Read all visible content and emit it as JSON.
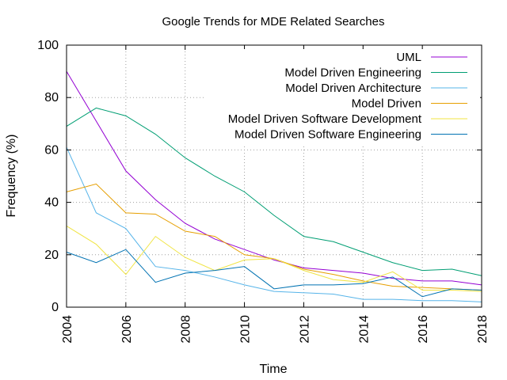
{
  "chart_data": {
    "type": "line",
    "title": "Google Trends for MDE Related Searches",
    "xlabel": "Time",
    "ylabel": "Frequency (%)",
    "xlim": [
      2004,
      2018
    ],
    "ylim": [
      0,
      100
    ],
    "x_ticks": [
      2004,
      2006,
      2008,
      2010,
      2012,
      2014,
      2016,
      2018
    ],
    "y_ticks": [
      0,
      20,
      40,
      60,
      80,
      100
    ],
    "grid": true,
    "legend_position": "top-right",
    "x": [
      2004,
      2005,
      2006,
      2007,
      2008,
      2009,
      2010,
      2011,
      2012,
      2013,
      2014,
      2015,
      2016,
      2017,
      2018
    ],
    "series": [
      {
        "name": "UML",
        "color": "#9400d3",
        "values": [
          90,
          71,
          52,
          41,
          32,
          26,
          22,
          18,
          15,
          14,
          13,
          11,
          10,
          10,
          8.5
        ]
      },
      {
        "name": "Model Driven Engineering",
        "color": "#009e73",
        "values": [
          69,
          76,
          73,
          66,
          57,
          50,
          44,
          35,
          27,
          25,
          21,
          17,
          14,
          14.5,
          12
        ]
      },
      {
        "name": "Model Driven Architecture",
        "color": "#56b4e9",
        "values": [
          61,
          36,
          30,
          15.5,
          14,
          11.5,
          8.5,
          6,
          5.5,
          5,
          3,
          3,
          2.5,
          2.5,
          2
        ]
      },
      {
        "name": "Model Driven",
        "color": "#e69f00",
        "values": [
          44,
          47,
          36,
          35.5,
          29,
          27,
          20,
          18.5,
          14.5,
          12.5,
          10,
          8,
          7.5,
          7,
          6.5
        ]
      },
      {
        "name": "Model Driven Software Development",
        "color": "#f0e442",
        "values": [
          31,
          24,
          12.5,
          27,
          19,
          14,
          18,
          18.5,
          14,
          10.5,
          9.5,
          13.5,
          6.5,
          6.5,
          6
        ]
      },
      {
        "name": "Model Driven Software Engineering",
        "color": "#0072b2",
        "values": [
          21,
          17,
          22,
          9.5,
          13,
          14,
          15.5,
          7,
          8.5,
          8.5,
          9,
          11.5,
          4,
          7,
          6.5
        ]
      }
    ]
  }
}
